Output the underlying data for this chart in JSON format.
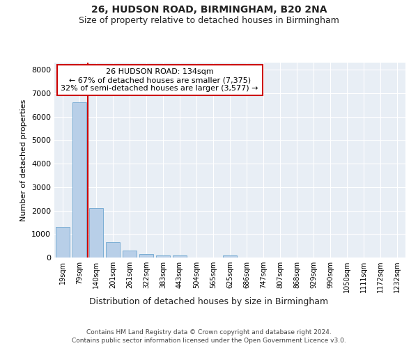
{
  "title1": "26, HUDSON ROAD, BIRMINGHAM, B20 2NA",
  "title2": "Size of property relative to detached houses in Birmingham",
  "xlabel": "Distribution of detached houses by size in Birmingham",
  "ylabel": "Number of detached properties",
  "categories": [
    "19sqm",
    "79sqm",
    "140sqm",
    "201sqm",
    "261sqm",
    "322sqm",
    "383sqm",
    "443sqm",
    "504sqm",
    "565sqm",
    "625sqm",
    "686sqm",
    "747sqm",
    "807sqm",
    "868sqm",
    "929sqm",
    "990sqm",
    "1050sqm",
    "1111sqm",
    "1172sqm",
    "1232sqm"
  ],
  "values": [
    1300,
    6600,
    2100,
    650,
    300,
    150,
    80,
    80,
    0,
    0,
    80,
    0,
    0,
    0,
    0,
    0,
    0,
    0,
    0,
    0,
    0
  ],
  "bar_color": "#b8cfe8",
  "bar_edge_color": "#7aadd4",
  "vline_position": 1.5,
  "vline_color": "#cc0000",
  "annotation_text": "26 HUDSON ROAD: 134sqm\n← 67% of detached houses are smaller (7,375)\n32% of semi-detached houses are larger (3,577) →",
  "annotation_box_facecolor": "#ffffff",
  "annotation_box_edgecolor": "#cc0000",
  "ylim": [
    0,
    8300
  ],
  "yticks": [
    0,
    1000,
    2000,
    3000,
    4000,
    5000,
    6000,
    7000,
    8000
  ],
  "plot_bg_color": "#e8eef5",
  "grid_color": "#ffffff",
  "footer1": "Contains HM Land Registry data © Crown copyright and database right 2024.",
  "footer2": "Contains public sector information licensed under the Open Government Licence v3.0."
}
